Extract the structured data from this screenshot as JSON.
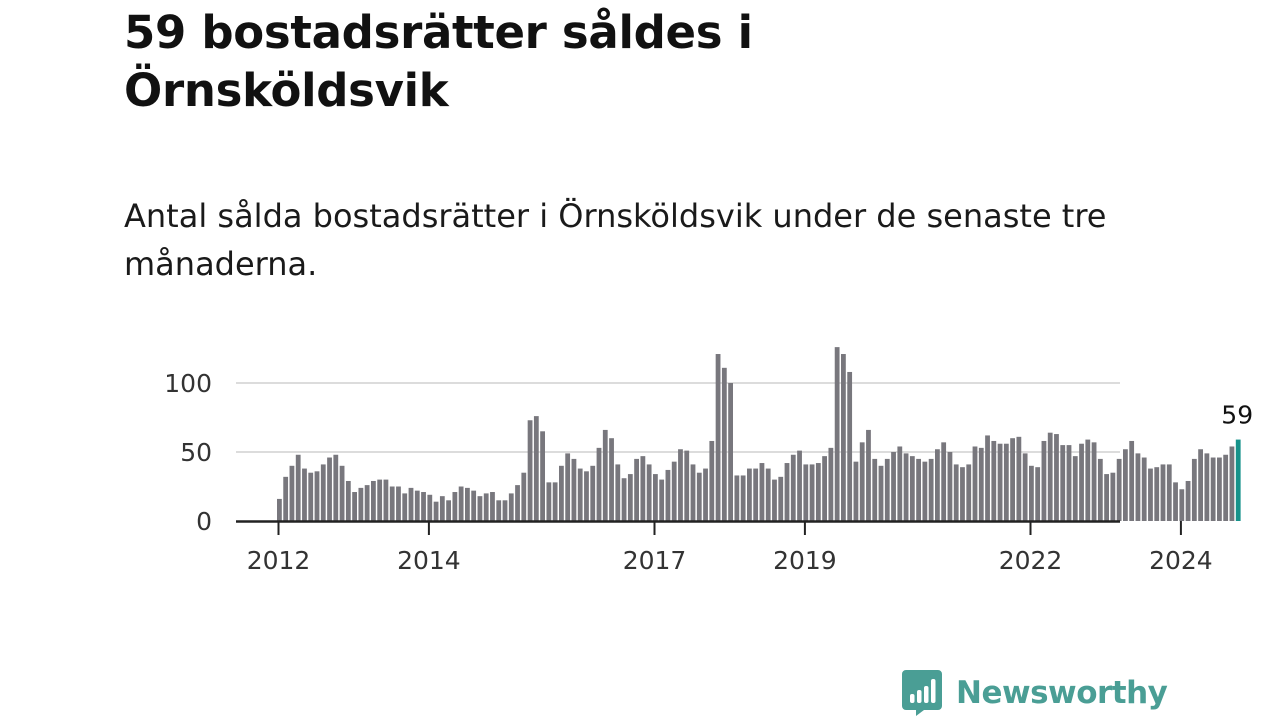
{
  "header": {
    "title": "59 bostadsrätter såldes i Örnsköldsvik",
    "subtitle": "Antal sålda bostadsrätter i Örnsköldsvik under de senaste tre månaderna."
  },
  "brand": {
    "name": "Newsworthy",
    "color": "#4a9e95"
  },
  "colors": {
    "bar": "#78777d",
    "highlight": "#16928a",
    "grid": "#dcdcdc",
    "axis": "#222222",
    "tick_label": "#333333"
  },
  "chart_data": {
    "type": "bar",
    "x_start": "2012-01",
    "x_unit": "month",
    "ylim": [
      0,
      130
    ],
    "yticks": [
      0,
      50,
      100
    ],
    "xticks": [
      "2012",
      "2014",
      "2017",
      "2019",
      "2022",
      "2024"
    ],
    "grid": true,
    "highlight_label": "59",
    "values": [
      16,
      32,
      40,
      48,
      38,
      35,
      36,
      41,
      46,
      48,
      40,
      29,
      21,
      24,
      26,
      29,
      30,
      30,
      25,
      25,
      20,
      24,
      22,
      21,
      19,
      14,
      18,
      15,
      21,
      25,
      24,
      22,
      18,
      20,
      21,
      15,
      15,
      20,
      26,
      35,
      73,
      76,
      65,
      28,
      28,
      40,
      49,
      45,
      38,
      36,
      40,
      53,
      66,
      60,
      41,
      31,
      34,
      45,
      47,
      41,
      34,
      30,
      37,
      43,
      52,
      51,
      41,
      35,
      38,
      58,
      121,
      111,
      100,
      33,
      33,
      38,
      38,
      42,
      38,
      30,
      32,
      42,
      48,
      51,
      41,
      41,
      42,
      47,
      53,
      126,
      121,
      108,
      43,
      57,
      66,
      45,
      40,
      45,
      50,
      54,
      49,
      47,
      45,
      43,
      45,
      52,
      57,
      50,
      41,
      39,
      41,
      54,
      53,
      62,
      58,
      56,
      56,
      60,
      61,
      49,
      40,
      39,
      58,
      64,
      63,
      55,
      55,
      47,
      56,
      59,
      57,
      45,
      34,
      35,
      45,
      52,
      58,
      49,
      46,
      38,
      39,
      41,
      41,
      28,
      23,
      29,
      45,
      52,
      49,
      46,
      46,
      48,
      54,
      59
    ]
  }
}
